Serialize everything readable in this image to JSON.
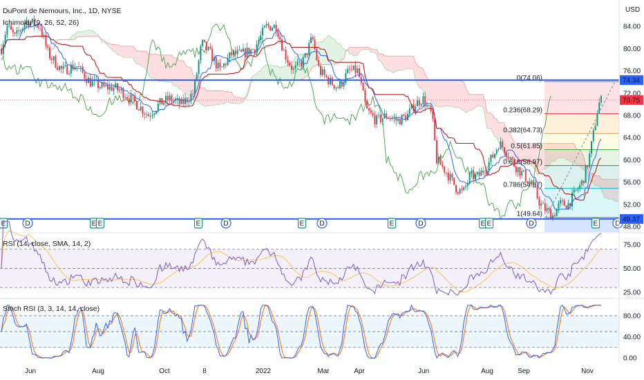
{
  "chart_data": [
    {
      "type": "candlestick",
      "title": "DuPont de Nemours, Inc., 1D, NYSE",
      "indicator": "Ichimoku (9, 26, 52, 26)",
      "currency": "USD",
      "ylim": [
        47,
        87
      ],
      "y_ticks": [
        "84.00",
        "80.00",
        "76.00",
        "72.00",
        "68.00",
        "64.00",
        "60.00",
        "56.00",
        "52.00",
        "48.00"
      ],
      "x_ticks": [
        "Jun",
        "Aug",
        "Oct",
        "8",
        "2022",
        "Mar",
        "Apr",
        "Jun",
        "Aug",
        "Sep",
        "Nov"
      ],
      "price_badges": [
        {
          "value": "74.34",
          "color": "#2962ff"
        },
        {
          "value": "70.75",
          "color": "#f23645"
        },
        {
          "value": "49.37",
          "color": "#2962ff"
        }
      ],
      "horizontal_lines": [
        74.34,
        49.37
      ],
      "current_price": 70.75,
      "fibonacci": [
        {
          "level": "0",
          "price": 74.06,
          "label": "0(74.06)",
          "color": "#787b86"
        },
        {
          "level": "0.236",
          "price": 68.29,
          "label": "0.236(68.29)",
          "color": "#f23645"
        },
        {
          "level": "0.382",
          "price": 64.73,
          "label": "0.382(64.73)",
          "color": "#ff9800"
        },
        {
          "level": "0.5",
          "price": 61.85,
          "label": "0.5(61.85)",
          "color": "#4caf50"
        },
        {
          "level": "0.618",
          "price": 58.97,
          "label": "0.618(58.97)",
          "color": "#089981"
        },
        {
          "level": "0.786",
          "price": 54.87,
          "label": "0.786(54.87)",
          "color": "#00bcd4"
        },
        {
          "level": "1",
          "price": 49.64,
          "label": "1(49.64)",
          "color": "#787b86"
        }
      ],
      "event_markers": [
        "E",
        "D",
        "E",
        "E",
        "E",
        "D",
        "E",
        "D",
        "E",
        "D",
        "E",
        "E",
        "D",
        "E",
        "D"
      ]
    },
    {
      "type": "line",
      "title": "RSI (14, close, SMA, 14, 2)",
      "ylim": [
        20,
        85
      ],
      "y_ticks": [
        "75.00",
        "50.00",
        "25.00"
      ],
      "bands": [
        70,
        30
      ]
    },
    {
      "type": "line",
      "title": "Stoch RSI (3, 3, 14, 14, close)",
      "ylim": [
        -5,
        110
      ],
      "y_ticks": [
        "80.00",
        "40.00",
        "0.00"
      ],
      "bands": [
        80,
        20
      ]
    }
  ]
}
